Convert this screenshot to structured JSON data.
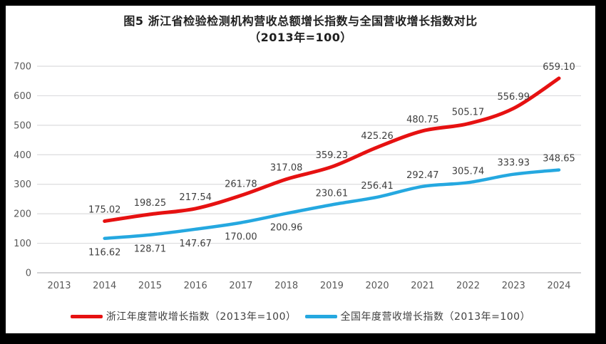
{
  "chart_data": {
    "type": "line",
    "title": "图5  浙江省检验检测机构营收总额增长指数与全国营收增长指数对比",
    "subtitle": "（2013年=100）",
    "categories": [
      "2013",
      "2014",
      "2015",
      "2016",
      "2017",
      "2018",
      "2019",
      "2020",
      "2021",
      "2022",
      "2023",
      "2024"
    ],
    "series": [
      {
        "name": "浙江年度营收增长指数（2013年=100）",
        "color": "#E61111",
        "line_width": 5,
        "values": [
          null,
          175.02,
          198.25,
          217.54,
          261.78,
          317.08,
          359.23,
          425.26,
          480.75,
          505.17,
          556.99,
          659.1
        ],
        "label_sides": "above"
      },
      {
        "name": "全国年度营收增长指数（2013年=100）",
        "color": "#25A8E0",
        "line_width": 4.5,
        "values": [
          null,
          116.62,
          128.71,
          147.67,
          170.0,
          200.96,
          230.61,
          256.41,
          292.47,
          305.74,
          333.93,
          348.65
        ],
        "label_sides": [
          null,
          "below",
          "below",
          "below",
          "below",
          "below",
          "above",
          "above",
          "above",
          "above",
          "above",
          "above"
        ]
      }
    ],
    "ylim": [
      0,
      700
    ],
    "ytick_step": 100,
    "grid": true,
    "legend_position": "bottom",
    "label_decimals": 2
  },
  "colors": {
    "grid_line": "#DCDCDE",
    "axis_line": "#C6C6C9",
    "axis_text": "#595959",
    "data_label_text": "#3F3F3F",
    "title_text": "#1F1F1F",
    "frame_border": "#000000",
    "background": "#FFFFFF"
  }
}
